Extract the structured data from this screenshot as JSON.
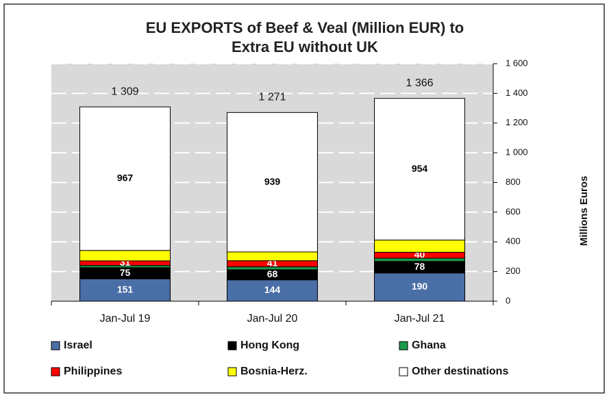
{
  "chart_data": {
    "type": "stacked_bar",
    "title": [
      "EU EXPORTS of Beef & Veal (Million EUR) to",
      "Extra EU without UK"
    ],
    "y_axis_label": "Millions Euros",
    "categories": [
      "Jan-Jul 19",
      "Jan-Jul 20",
      "Jan-Jul 21"
    ],
    "series": [
      {
        "name": "Israel",
        "color": "#4a6ea6",
        "values": [
          151,
          144,
          190
        ],
        "labels": true,
        "label_color": "#ffffff"
      },
      {
        "name": "Hong Kong",
        "color": "#000000",
        "values": [
          75,
          68,
          78
        ],
        "labels": true,
        "label_color": "#ffffff"
      },
      {
        "name": "Ghana",
        "color": "#1a9a4a",
        "values": [
          15,
          20,
          22
        ],
        "labels": false
      },
      {
        "name": "Philippines",
        "color": "#ff0000",
        "values": [
          31,
          41,
          40
        ],
        "labels": true,
        "label_color": "#ffffff"
      },
      {
        "name": "Bosnia-Herz.",
        "color": "#ffff00",
        "values": [
          70,
          59,
          82
        ],
        "labels": false
      },
      {
        "name": "Other destinations",
        "color": "#ffffff",
        "values": [
          967,
          939,
          954
        ],
        "labels": true,
        "label_color": "#000000"
      }
    ],
    "totals": [
      1309,
      1271,
      1366
    ],
    "total_labels": [
      "1 309",
      "1 271",
      "1 366"
    ],
    "ylim": [
      0,
      1600
    ],
    "yticks": [
      0,
      200,
      400,
      600,
      800,
      {
        "value": 1000,
        "label": "1 000"
      },
      {
        "value": 1200,
        "label": "1 200"
      },
      {
        "value": 1400,
        "label": "1 400"
      },
      {
        "value": 1600,
        "label": "1 600"
      }
    ],
    "grid": true
  }
}
